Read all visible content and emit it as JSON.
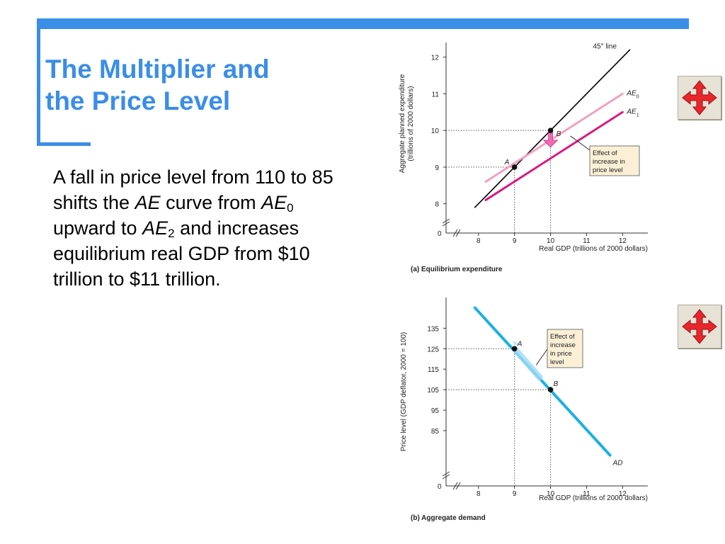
{
  "slide": {
    "title_line1": "The Multiplier and",
    "title_line2": "the Price Level",
    "body": {
      "p1": "A fall in price level from 110 to 85 shifts the ",
      "ae": "AE",
      "p2": " curve from ",
      "ae0": "AE",
      "sub0": "0",
      "p3": " upward to ",
      "ae2": "AE",
      "sub2": "2",
      "p4": " and increases equilibrium real GDP from $10 trillion to $11 trillion."
    },
    "accent_color": "#3a8ee6",
    "nav_icon": "move-arrows-icon"
  },
  "chart_data": [
    {
      "type": "line",
      "caption": "(a) Equilibrium expenditure",
      "xlabel": "Real GDP (trillions of 2000 dollars)",
      "ylabel_line1": "Aggregate planned expenditure",
      "ylabel_line2": "(trillions of 2000 dollars)",
      "xlim": [
        7.1,
        12.7
      ],
      "ylim": [
        7.2,
        12.4
      ],
      "x_ticks": [
        8,
        9,
        10,
        11,
        12
      ],
      "y_ticks": [
        8,
        9,
        10,
        11,
        12
      ],
      "origin_label": "0",
      "series": [
        {
          "name": "45° line",
          "points": [
            [
              7.9,
              7.9
            ],
            [
              12.2,
              12.2
            ]
          ],
          "color": "#000000"
        },
        {
          "name": "AE",
          "sub": "0",
          "points": [
            [
              8.2,
              8.6
            ],
            [
              12.0,
              11.0
            ]
          ],
          "color": "#f2a0c0"
        },
        {
          "name": "AE",
          "sub": "1",
          "points": [
            [
              8.2,
              8.1
            ],
            [
              12.0,
              10.5
            ]
          ],
          "color": "#d81b80"
        }
      ],
      "points": [
        {
          "label": "A",
          "x": 9,
          "y": 9
        },
        {
          "label": "B",
          "x": 10,
          "y": 10
        }
      ],
      "annotation": {
        "lines": [
          "Effect of",
          "increase in",
          "price level"
        ]
      }
    },
    {
      "type": "line",
      "caption": "(b) Aggregate demand",
      "xlabel": "Real GDP (trillions of 2000 dollars)",
      "ylabel": "Price level (GDP deflator, 2000 = 100)",
      "xlim": [
        7.1,
        12.7
      ],
      "ylim": [
        58,
        150
      ],
      "x_ticks": [
        8,
        9,
        10,
        11,
        12
      ],
      "y_ticks": [
        85,
        95,
        105,
        115,
        125,
        135
      ],
      "origin_label": "0",
      "series": [
        {
          "name": "AD",
          "points": [
            [
              7.9,
              145
            ],
            [
              11.65,
              73
            ]
          ],
          "color": "#1ab0e4"
        }
      ],
      "points": [
        {
          "label": "A",
          "x": 9,
          "y": 125
        },
        {
          "label": "B",
          "x": 10,
          "y": 105
        }
      ],
      "annotation": {
        "lines": [
          "Effect of",
          "increase",
          "in price",
          "level"
        ]
      }
    }
  ]
}
